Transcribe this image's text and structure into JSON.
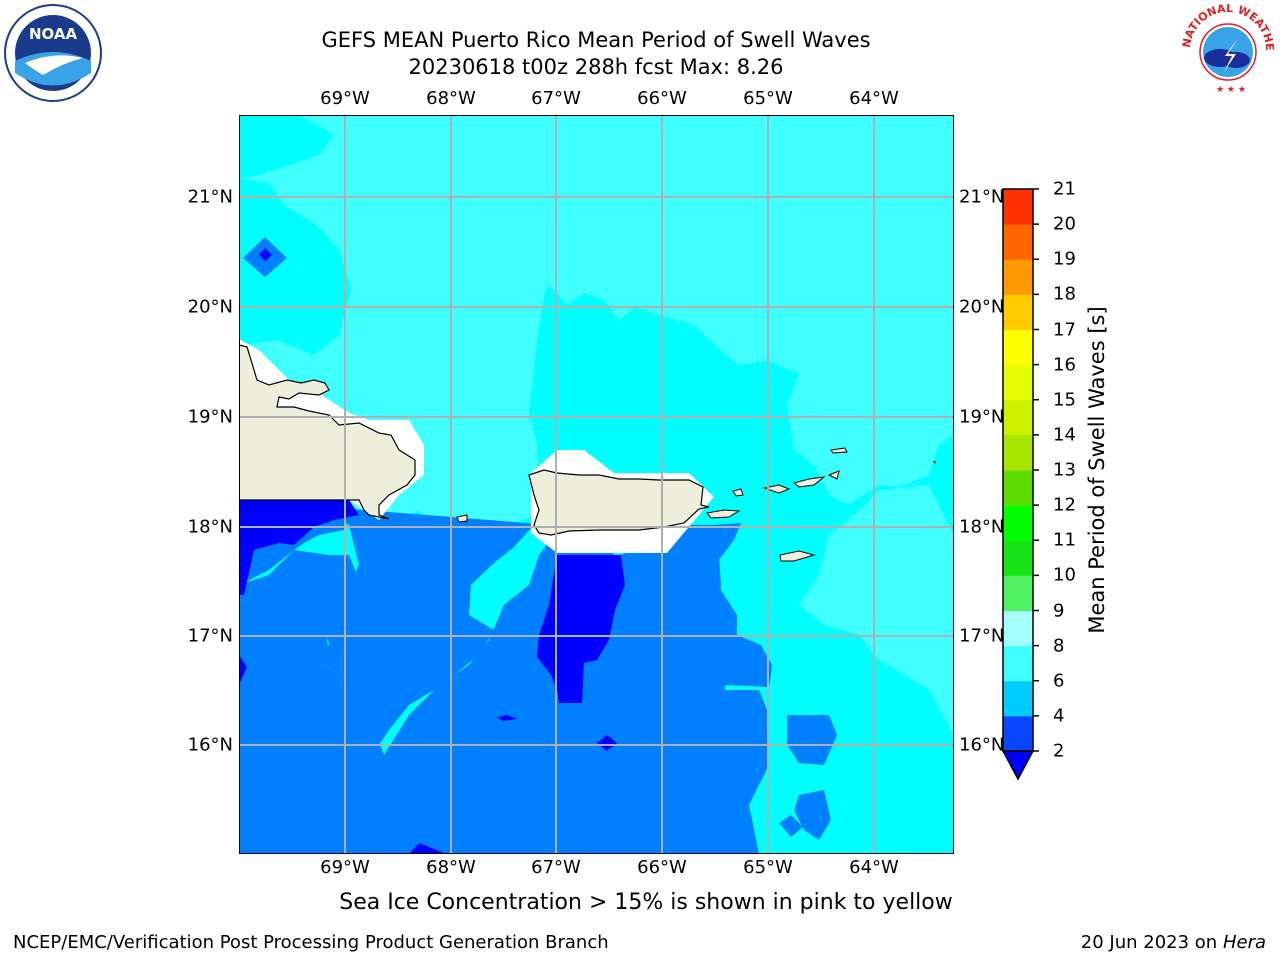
{
  "title": {
    "line1": "GEFS MEAN Puerto Rico Mean Period of Swell Waves",
    "line2": "20230618 t00z 288h fcst   Max: 8.26"
  },
  "longitude_labels": [
    "69°W",
    "68°W",
    "67°W",
    "66°W",
    "65°W",
    "64°W"
  ],
  "latitude_labels": [
    "21°N",
    "20°N",
    "19°N",
    "18°N",
    "17°N",
    "16°N"
  ],
  "colorbar": {
    "label": "Mean Period of Swell Waves [s]",
    "ticks": [
      "2",
      "4",
      "6",
      "8",
      "9",
      "10",
      "11",
      "12",
      "13",
      "14",
      "15",
      "16",
      "17",
      "18",
      "19",
      "20",
      "21"
    ],
    "colors": [
      "#0a46ff",
      "#00ccff",
      "#40ffff",
      "#a6ffff",
      "#50f064",
      "#17e417",
      "#00ff00",
      "#5fdc00",
      "#a6e600",
      "#ccf000",
      "#e6ff00",
      "#ffff00",
      "#ffcc00",
      "#ff9900",
      "#ff6600",
      "#ff3300",
      "#ff0000"
    ],
    "under_color": "#0000ff"
  },
  "map_colors": {
    "band_2_4": "#0080ff",
    "band_under_2": "#0000ff",
    "band_4_6": "#00ffff",
    "band_6_8": "#40ffff",
    "land": "#eeeedc",
    "nodata": "#ffffff",
    "grid": "#b0b0b0"
  },
  "subtitle": "Sea Ice Concentration > 15% is shown in pink to yellow",
  "footer": {
    "left": "NCEP/EMC/Verification Post Processing Product Generation Branch",
    "date": "20 Jun 2023",
    "on": "on",
    "host": "Hera"
  },
  "logos": {
    "noaa": "NOAA",
    "nws": "NATIONAL WEATHER SERVICE"
  }
}
